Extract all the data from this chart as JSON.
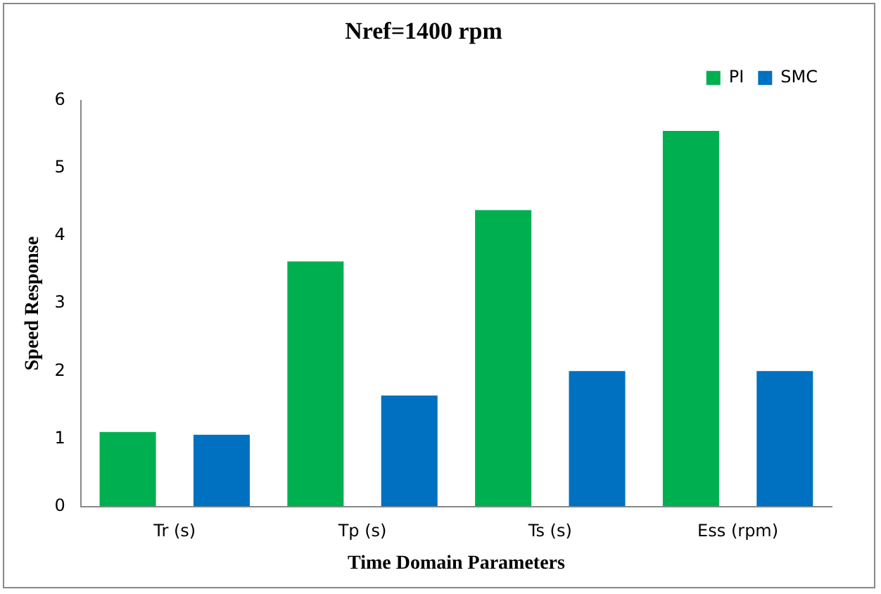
{
  "chart_data": {
    "type": "bar",
    "title": "Nref=1400 rpm",
    "xlabel": "Time Domain Parameters",
    "ylabel": "Speed Response",
    "categories": [
      "Tr (s)",
      "Tp (s)",
      "Ts (s)",
      "Ess (rpm)"
    ],
    "series": [
      {
        "name": "PI",
        "color": "#00b050",
        "values": [
          1.1,
          3.62,
          4.38,
          5.55
        ]
      },
      {
        "name": "SMC",
        "color": "#0070c0",
        "values": [
          1.06,
          1.64,
          2.0,
          2.0
        ]
      }
    ],
    "ylim": [
      0,
      6
    ],
    "yticks": [
      0,
      1,
      2,
      3,
      4,
      5,
      6
    ],
    "grid": false,
    "legend": "top right"
  }
}
